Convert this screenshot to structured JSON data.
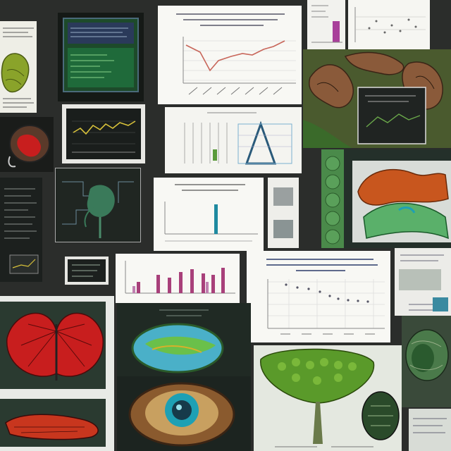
{
  "palette": {
    "background": "#2b2d2b",
    "paper": "#f6f6f2",
    "dark_panel": "#1e2220",
    "chart_line_red": "#c8665a",
    "chart_line_yellow": "#d8c23a",
    "bar_magenta": "#a8407a",
    "bar_teal": "#1f8aa0",
    "specimen_green": "#5a8a2a",
    "specimen_red": "#c81e1e",
    "specimen_orange": "#c8561e",
    "specimen_teal": "#1ea0b4"
  },
  "tiles": [
    {
      "name": "leaf-specimen-sheet",
      "kind": "illustration"
    },
    {
      "name": "green-screen-monitor",
      "kind": "illustration"
    },
    {
      "name": "line-chart-paper",
      "kind": "chart"
    },
    {
      "name": "small-bar-chart-paper",
      "kind": "chart"
    },
    {
      "name": "scatter-chart-paper",
      "kind": "chart"
    },
    {
      "name": "root-illustration",
      "kind": "illustration"
    },
    {
      "name": "red-organ-specimen",
      "kind": "illustration"
    },
    {
      "name": "yellow-line-dark-chart",
      "kind": "chart"
    },
    {
      "name": "triangle-diagram-paper",
      "kind": "diagram"
    },
    {
      "name": "plant-circuit-dark",
      "kind": "illustration"
    },
    {
      "name": "spike-bar-chart-paper",
      "kind": "chart"
    },
    {
      "name": "orange-green-specimen",
      "kind": "illustration"
    },
    {
      "name": "dark-text-page",
      "kind": "document"
    },
    {
      "name": "magenta-bar-chart-paper",
      "kind": "chart"
    },
    {
      "name": "declining-scatter-paper",
      "kind": "chart"
    },
    {
      "name": "red-wing-specimen",
      "kind": "illustration"
    },
    {
      "name": "cell-cross-section",
      "kind": "illustration"
    },
    {
      "name": "green-tree-illustration",
      "kind": "illustration"
    },
    {
      "name": "green-fruit-specimen",
      "kind": "illustration"
    }
  ]
}
